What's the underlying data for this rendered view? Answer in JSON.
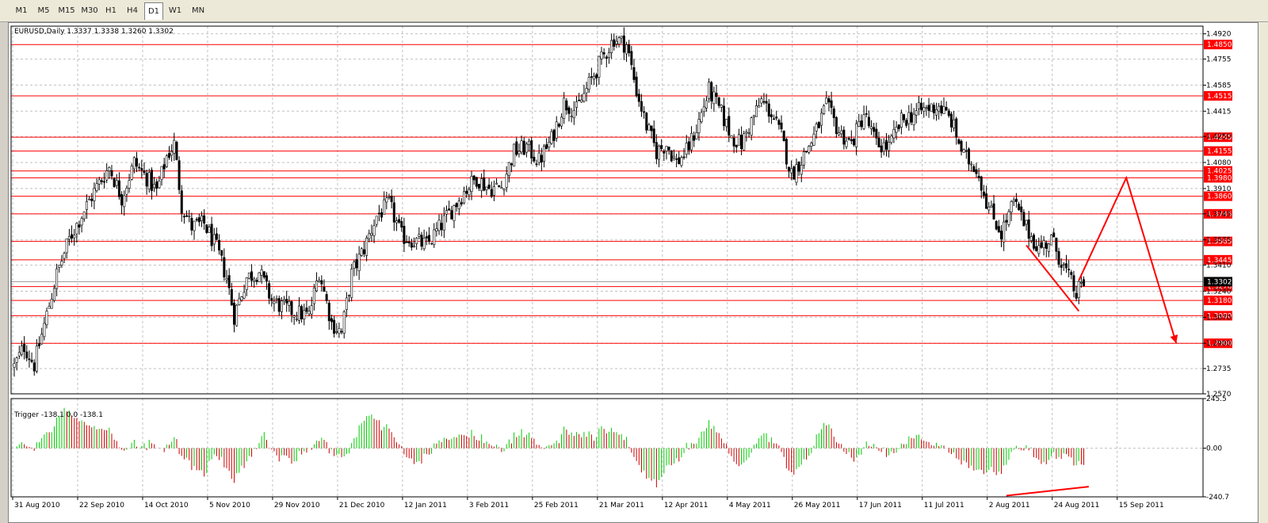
{
  "toolbar": {
    "timeframes": [
      {
        "label": "M1"
      },
      {
        "label": "M5"
      },
      {
        "label": "M15"
      },
      {
        "label": "M30"
      },
      {
        "label": "H1"
      },
      {
        "label": "H4"
      },
      {
        "label": "D1",
        "active": true
      },
      {
        "label": "W1"
      },
      {
        "label": "MN"
      }
    ]
  },
  "colors": {
    "level": "#ff0000",
    "bull_histogram": "#00cc00",
    "bear_histogram": "#cc0000",
    "grid": "#c0c0c0",
    "candle": "#000000"
  },
  "chart_data": [
    {
      "type": "candlestick",
      "title": "EURUSD,Daily  1.3337 1.3338 1.3260 1.3302",
      "ylim": [
        1.257,
        1.497
      ],
      "y_ticks": [
        1.492,
        1.4755,
        1.4585,
        1.4415,
        1.425,
        1.408,
        1.391,
        1.3745,
        1.3575,
        1.341,
        1.324,
        1.307,
        1.29,
        1.2735,
        1.257
      ],
      "y_tick_labels": [
        "1.4920",
        "1.4755",
        "1.4585",
        "1.4415",
        "1.4250",
        "1.4080",
        "1.3910",
        "1.3745",
        "1.3575",
        "1.3410",
        "1.3240",
        "1.3070",
        "1.2900",
        "1.2735",
        "1.2570"
      ],
      "x_tick_labels": [
        "31 Aug 2010",
        "22 Sep 2010",
        "14 Oct 2010",
        "5 Nov 2010",
        "29 Nov 2010",
        "21 Dec 2010",
        "12 Jan 2011",
        "3 Feb 2011",
        "25 Feb 2011",
        "21 Mar 2011",
        "12 Apr 2011",
        "4 May 2011",
        "26 May 2011",
        "17 Jun 2011",
        "11 Jul 2011",
        "2 Aug 2011",
        "24 Aug 2011",
        "15 Sep 2011"
      ],
      "current_price": "1.3302",
      "levels": [
        {
          "value": 1.485,
          "label": "1.4850"
        },
        {
          "value": 1.4515,
          "label": "1.4515"
        },
        {
          "value": 1.4245,
          "label": "1.4245"
        },
        {
          "value": 1.4155,
          "label": "1.4155"
        },
        {
          "value": 1.4025,
          "label": "1.4025"
        },
        {
          "value": 1.398,
          "label": "1.3980"
        },
        {
          "value": 1.386,
          "label": "1.3860"
        },
        {
          "value": 1.3745,
          "label": "1.3745"
        },
        {
          "value": 1.3565,
          "label": "1.3565"
        },
        {
          "value": 1.3445,
          "label": "1.3445"
        },
        {
          "value": 1.327,
          "label": "1.3270"
        },
        {
          "value": 1.318,
          "label": "1.3180"
        },
        {
          "value": 1.308,
          "label": "1.3080"
        },
        {
          "value": 1.29,
          "label": "1.2900"
        }
      ],
      "close_path": [
        [
          0,
          1.275
        ],
        [
          4,
          1.288
        ],
        [
          8,
          1.276
        ],
        [
          12,
          1.302
        ],
        [
          17,
          1.335
        ],
        [
          22,
          1.358
        ],
        [
          28,
          1.377
        ],
        [
          33,
          1.392
        ],
        [
          38,
          1.405
        ],
        [
          43,
          1.385
        ],
        [
          48,
          1.408
        ],
        [
          53,
          1.398
        ],
        [
          57,
          1.389
        ],
        [
          61,
          1.412
        ],
        [
          64,
          1.42
        ],
        [
          67,
          1.38
        ],
        [
          71,
          1.366
        ],
        [
          76,
          1.368
        ],
        [
          81,
          1.352
        ],
        [
          85,
          1.333
        ],
        [
          88,
          1.308
        ],
        [
          93,
          1.333
        ],
        [
          98,
          1.337
        ],
        [
          103,
          1.318
        ],
        [
          108,
          1.313
        ],
        [
          113,
          1.31
        ],
        [
          118,
          1.308
        ],
        [
          122,
          1.337
        ],
        [
          127,
          1.303
        ],
        [
          131,
          1.297
        ],
        [
          135,
          1.335
        ],
        [
          140,
          1.352
        ],
        [
          145,
          1.373
        ],
        [
          150,
          1.381
        ],
        [
          155,
          1.36
        ],
        [
          160,
          1.357
        ],
        [
          165,
          1.354
        ],
        [
          170,
          1.365
        ],
        [
          175,
          1.377
        ],
        [
          180,
          1.389
        ],
        [
          185,
          1.398
        ],
        [
          190,
          1.391
        ],
        [
          195,
          1.392
        ],
        [
          200,
          1.415
        ],
        [
          205,
          1.418
        ],
        [
          210,
          1.409
        ],
        [
          215,
          1.423
        ],
        [
          220,
          1.447
        ],
        [
          225,
          1.442
        ],
        [
          230,
          1.459
        ],
        [
          235,
          1.475
        ],
        [
          240,
          1.489
        ],
        [
          245,
          1.485
        ],
        [
          249,
          1.455
        ],
        [
          253,
          1.432
        ],
        [
          257,
          1.415
        ],
        [
          261,
          1.42
        ],
        [
          265,
          1.408
        ],
        [
          269,
          1.415
        ],
        [
          273,
          1.43
        ],
        [
          278,
          1.455
        ],
        [
          283,
          1.44
        ],
        [
          287,
          1.425
        ],
        [
          291,
          1.42
        ],
        [
          295,
          1.435
        ],
        [
          299,
          1.448
        ],
        [
          303,
          1.44
        ],
        [
          307,
          1.425
        ],
        [
          311,
          1.4
        ],
        [
          315,
          1.41
        ],
        [
          320,
          1.425
        ],
        [
          325,
          1.445
        ],
        [
          330,
          1.428
        ],
        [
          335,
          1.42
        ],
        [
          340,
          1.44
        ],
        [
          345,
          1.42
        ],
        [
          350,
          1.418
        ],
        [
          355,
          1.435
        ],
        [
          360,
          1.44
        ],
        [
          365,
          1.443
        ],
        [
          370,
          1.445
        ],
        [
          375,
          1.435
        ],
        [
          380,
          1.412
        ],
        [
          385,
          1.405
        ],
        [
          390,
          1.378
        ],
        [
          395,
          1.362
        ],
        [
          400,
          1.382
        ],
        [
          405,
          1.365
        ],
        [
          410,
          1.352
        ],
        [
          415,
          1.358
        ],
        [
          420,
          1.34
        ],
        [
          425,
          1.322
        ],
        [
          428,
          1.33
        ]
      ],
      "annotations": [
        {
          "type": "trendline",
          "color": "#ff0000",
          "points": [
            [
              405,
              1.354
            ],
            [
              426,
              1.311
            ]
          ]
        },
        {
          "type": "arrow",
          "color": "#ff0000",
          "points": [
            [
              426,
              1.331
            ],
            [
              445,
              1.398
            ],
            [
              465,
              1.29
            ]
          ]
        }
      ]
    },
    {
      "type": "histogram",
      "title": "Trigger -138.1 0.0 -138.1",
      "ylim": [
        -240.7,
        245.5
      ],
      "y_ticks": [
        245.5,
        0.0,
        -240.7
      ],
      "y_tick_labels": [
        "245.5",
        "0.00",
        "-240.7"
      ],
      "annotations": [
        {
          "type": "trendline",
          "color": "#ff0000",
          "points": [
            [
              397,
              -235
            ],
            [
              430,
              -190
            ]
          ]
        }
      ]
    }
  ]
}
